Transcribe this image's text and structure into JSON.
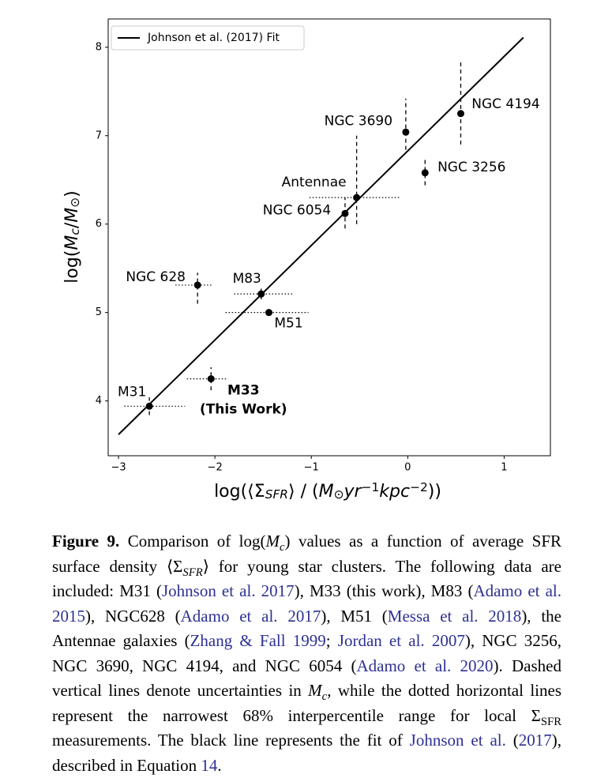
{
  "chart_data": {
    "type": "scatter",
    "xlabel": [
      {
        "text": "log(⟨Σ",
        "style": "text"
      },
      {
        "text": "SFR",
        "style": "sub-italic"
      },
      {
        "text": "⟩ / (",
        "style": "text"
      },
      {
        "text": "M",
        "style": "italic"
      },
      {
        "text": "⊙",
        "style": "sub"
      },
      {
        "text": "yr",
        "style": "italic"
      },
      {
        "text": "−1",
        "style": "sup"
      },
      {
        "text": "kpc",
        "style": "italic"
      },
      {
        "text": "−2",
        "style": "sup"
      },
      {
        "text": "))",
        "style": "text"
      }
    ],
    "ylabel": [
      {
        "text": "log(",
        "style": "text"
      },
      {
        "text": "M",
        "style": "italic"
      },
      {
        "text": "c",
        "style": "sub-italic"
      },
      {
        "text": "/",
        "style": "text"
      },
      {
        "text": "M",
        "style": "italic"
      },
      {
        "text": "⊙",
        "style": "sub"
      },
      {
        "text": ")",
        "style": "text"
      }
    ],
    "xlim": [
      -3.107,
      1.48
    ],
    "ylim": [
      3.38,
      8.32
    ],
    "xticks": [
      {
        "value": -3,
        "label": "−3"
      },
      {
        "value": -2,
        "label": "−2"
      },
      {
        "value": -1,
        "label": "−1"
      },
      0,
      1
    ],
    "yticks": [
      4,
      5,
      6,
      7,
      8
    ],
    "color": "#000000",
    "labels": [
      "M31",
      [
        "M33",
        "(This Work)"
      ],
      "NGC 628",
      "M83",
      "M51",
      "NGC 6054",
      "Antennae",
      "NGC 3690",
      "NGC 3256",
      "NGC 4194"
    ],
    "x": [
      -2.68,
      -2.04,
      -2.18,
      -1.52,
      -1.44,
      -0.65,
      -0.53,
      -0.02,
      0.18,
      0.55
    ],
    "values": [
      3.94,
      4.25,
      5.31,
      5.21,
      5.0,
      6.12,
      6.3,
      7.04,
      6.58,
      7.25
    ],
    "x_lower": [
      -2.94,
      -2.29,
      -2.41,
      -1.8,
      -1.89,
      null,
      -1.02,
      null,
      null,
      null
    ],
    "x_upper": [
      -2.31,
      -1.88,
      -2.03,
      -1.18,
      -1.03,
      null,
      -0.09,
      null,
      null,
      null
    ],
    "y_lower": [
      3.84,
      4.12,
      5.1,
      5.15,
      4.97,
      5.95,
      6.0,
      6.84,
      6.44,
      6.9
    ],
    "y_upper": [
      4.04,
      4.38,
      5.45,
      5.27,
      5.03,
      6.3,
      7.0,
      7.42,
      6.75,
      7.85
    ],
    "fit": {
      "name": "Johnson et al. (2017) Fit",
      "color": "#000000",
      "x": [
        -3,
        1.2
      ],
      "values": [
        3.62,
        8.11
      ]
    },
    "legend": "upper left"
  },
  "caption": {
    "label": "Figure 9.",
    "segments": [
      {
        "text": " Comparison of log(",
        "style": "text"
      },
      {
        "text": "M",
        "style": "italic"
      },
      {
        "text": "c",
        "style": "sub-italic"
      },
      {
        "text": ") values as a function of average SFR surface density ⟨Σ",
        "style": "text"
      },
      {
        "text": "SFR",
        "style": "sub-italic"
      },
      {
        "text": "⟩ for young star clusters. The following data are included: M31 (",
        "style": "text"
      },
      {
        "text": "Johnson et al. 2017",
        "style": "link"
      },
      {
        "text": "), M33 (this work), M83 (",
        "style": "text"
      },
      {
        "text": "Adamo et al. 2015",
        "style": "link"
      },
      {
        "text": "), NGC628 (",
        "style": "text"
      },
      {
        "text": "Adamo et al. 2017",
        "style": "link"
      },
      {
        "text": "), M51 (",
        "style": "text"
      },
      {
        "text": "Messa et al. 2018",
        "style": "link"
      },
      {
        "text": "), the Antennae galaxies (",
        "style": "text"
      },
      {
        "text": "Zhang & Fall 1999",
        "style": "link"
      },
      {
        "text": "; ",
        "style": "text"
      },
      {
        "text": "Jordan et al. 2007",
        "style": "link"
      },
      {
        "text": "), NGC 3256, NGC 3690, NGC 4194, and NGC 6054 (",
        "style": "text"
      },
      {
        "text": "Adamo et al. 2020",
        "style": "link"
      },
      {
        "text": "). Dashed vertical lines denote uncertainties in ",
        "style": "text"
      },
      {
        "text": "M",
        "style": "italic"
      },
      {
        "text": "c",
        "style": "sub-italic"
      },
      {
        "text": ", while the dotted horizontal lines represent the narrowest 68% interpercentile range for local Σ",
        "style": "text"
      },
      {
        "text": "SFR",
        "style": "sub"
      },
      {
        "text": " measurements. The black line represents the fit of ",
        "style": "text"
      },
      {
        "text": "Johnson et al.",
        "style": "link"
      },
      {
        "text": " (",
        "style": "text"
      },
      {
        "text": "2017",
        "style": "link"
      },
      {
        "text": "), described in Equation ",
        "style": "text"
      },
      {
        "text": "14",
        "style": "link"
      },
      {
        "text": ".",
        "style": "text"
      }
    ]
  }
}
